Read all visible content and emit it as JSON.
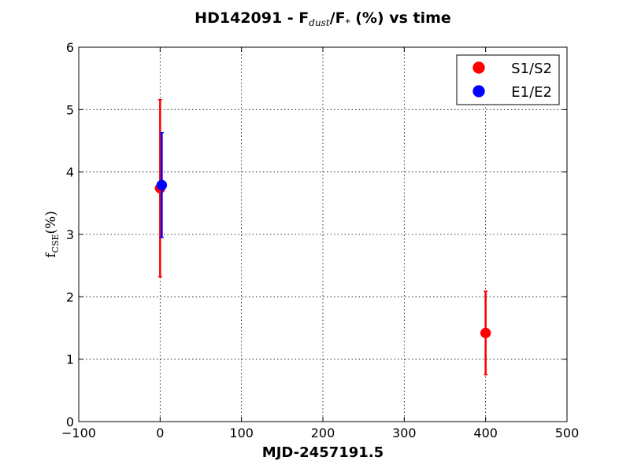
{
  "chart_data": {
    "type": "scatter",
    "title": {
      "main": "HD142091 - F",
      "sub1": "dust",
      "mid": "/F",
      "sub2": "*",
      "tail": " (%) vs time"
    },
    "xlabel": "MJD-2457191.5",
    "ylabel": {
      "main": "f",
      "sub": "CSE",
      "tail": "(%)"
    },
    "xlim": [
      -100,
      500
    ],
    "ylim": [
      0,
      6
    ],
    "xticks": [
      -100,
      0,
      100,
      200,
      300,
      400,
      500
    ],
    "xtick_labels": [
      "−100",
      "0",
      "100",
      "200",
      "300",
      "400",
      "500"
    ],
    "yticks": [
      0,
      1,
      2,
      3,
      4,
      5,
      6
    ],
    "ytick_labels": [
      "0",
      "1",
      "2",
      "3",
      "4",
      "5",
      "6"
    ],
    "grid": true,
    "legend_position": "top-right",
    "series": [
      {
        "name": "S1/S2",
        "color": "#ff0000",
        "points": [
          {
            "x": 0,
            "y": 3.74,
            "err": 1.42
          },
          {
            "x": 400,
            "y": 1.42,
            "err": 0.67
          }
        ]
      },
      {
        "name": "E1/E2",
        "color": "#0000ff",
        "points": [
          {
            "x": 2,
            "y": 3.79,
            "err": 0.84
          }
        ]
      }
    ]
  }
}
